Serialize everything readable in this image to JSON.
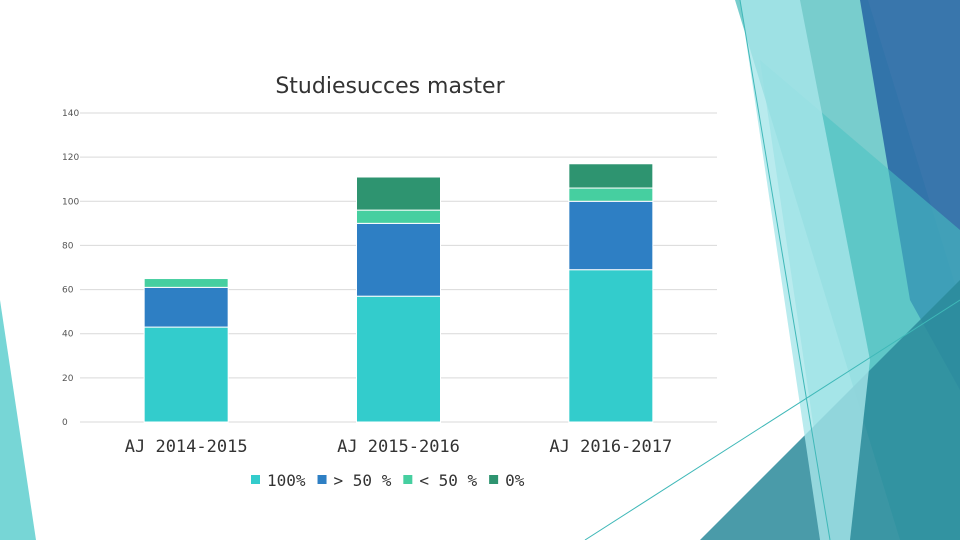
{
  "colors": {
    "series_100": "#33cccc",
    "series_gt50": "#2e7fc4",
    "series_lt50": "#46cfa0",
    "series_0": "#2e9470",
    "decor_teal": "#3fb8b8",
    "decor_blue": "#2e6fa8"
  },
  "chart_data": {
    "type": "bar",
    "stacked": true,
    "title": "Studiesucces master",
    "categories": [
      "AJ 2014-2015",
      "AJ 2015-2016",
      "AJ 2016-2017"
    ],
    "series": [
      {
        "name": "100%",
        "values": [
          43,
          57,
          69
        ]
      },
      {
        "name": "> 50 %",
        "values": [
          18,
          33,
          31
        ]
      },
      {
        "name": "< 50 %",
        "values": [
          4,
          6,
          6
        ]
      },
      {
        "name": "0%",
        "values": [
          0,
          15,
          11
        ]
      }
    ],
    "ylim": [
      0,
      140
    ],
    "yticks": [
      "0",
      "20",
      "40",
      "60",
      "80",
      "100",
      "120",
      "140"
    ],
    "grid": true,
    "legend": "bottom"
  }
}
